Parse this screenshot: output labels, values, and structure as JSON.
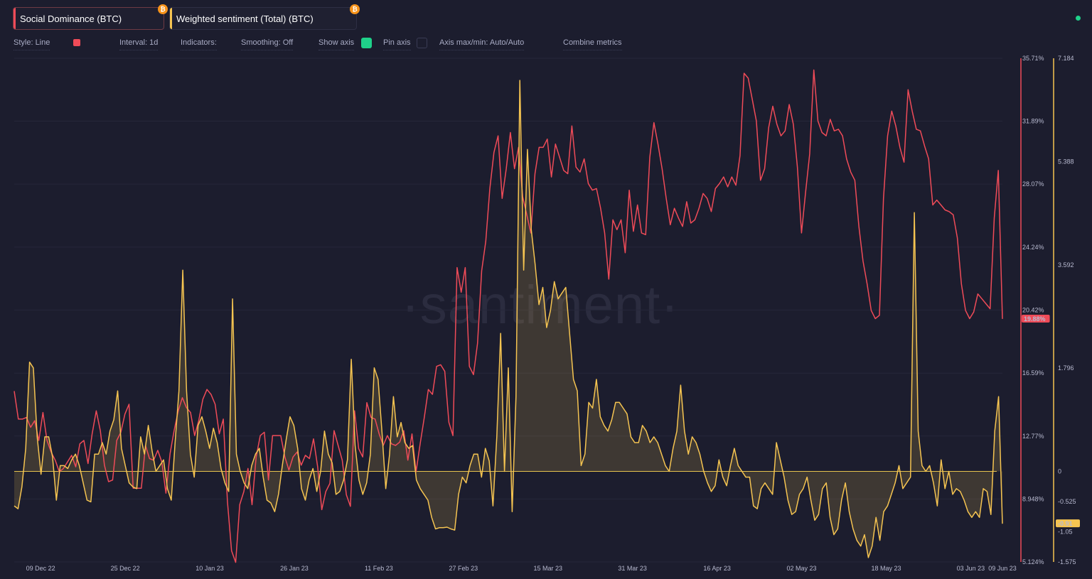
{
  "metrics": [
    {
      "label": "Social Dominance (BTC)",
      "color": "#ef4b58",
      "icon": "bitcoin-icon"
    },
    {
      "label": "Weighted sentiment (Total) (BTC)",
      "color": "#f5c451",
      "icon": "bitcoin-icon"
    }
  ],
  "toolbar": {
    "style": "Style: Line",
    "interval": "Interval: 1d",
    "indicators": "Indicators:",
    "smoothing": "Smoothing: Off",
    "show_axis": "Show axis",
    "pin_axis": "Pin axis",
    "axis_maxmin": "Axis max/min: Auto/Auto",
    "combine": "Combine metrics"
  },
  "watermark": "·santiment·",
  "colors": {
    "background": "#1c1d2e",
    "red": "#ef4b58",
    "yellow": "#f5c451",
    "green": "#1fd18a",
    "zero_line": "#e6c34e"
  },
  "chart_data": {
    "type": "line",
    "x_start": "2022-12-04",
    "x_end": "2023-06-09",
    "x_ticks": [
      "09 Dec 22",
      "25 Dec 22",
      "10 Jan 23",
      "26 Jan 23",
      "11 Feb 23",
      "27 Feb 23",
      "15 Mar 23",
      "31 Mar 23",
      "16 Apr 23",
      "02 May 23",
      "18 May 23",
      "03 Jun 23",
      "09 Jun 23"
    ],
    "axes": [
      {
        "id": "left",
        "metric": "Social Dominance (BTC)",
        "ylim": [
          5.124,
          35.71
        ],
        "ticks": [
          "35.71%",
          "31.89%",
          "28.07%",
          "24.24%",
          "20.42%",
          "16.59%",
          "12.77%",
          "8.948%",
          "5.124%"
        ],
        "last_value_label": "19.88%"
      },
      {
        "id": "right",
        "metric": "Weighted sentiment (Total) (BTC)",
        "ylim": [
          -1.575,
          7.184
        ],
        "ticks": [
          "7.184",
          "5.388",
          "3.592",
          "1.796",
          "0",
          "-0.525",
          "-1.05",
          "-1.575"
        ],
        "last_value_label": "-0.91"
      }
    ],
    "series": [
      {
        "name": "Social Dominance (BTC)",
        "axis": "left",
        "color": "#ef4b58",
        "style": "line",
        "values": [
          15.5,
          13.8,
          13.8,
          13.9,
          13.3,
          13.7,
          12.5,
          14.2,
          12.5,
          11.8,
          11.3,
          10.6,
          10.8,
          11.2,
          11.6,
          10.9,
          12.3,
          12.5,
          11.1,
          12.9,
          14.3,
          13.1,
          11.0,
          10.0,
          10.1,
          12.5,
          13.0,
          14.1,
          14.7,
          9.6,
          9.6,
          9.6,
          12.2,
          11.4,
          11.3,
          11.9,
          11.2,
          9.3,
          11.7,
          13.1,
          14.3,
          15.1,
          14.5,
          14.2,
          12.8,
          13.7,
          15.0,
          15.6,
          15.3,
          14.7,
          12.9,
          13.8,
          8.8,
          5.8,
          5.1,
          8.6,
          9.4,
          10.8,
          8.6,
          11.5,
          12.8,
          13.0,
          10.1,
          12.8,
          12.8,
          12.8,
          11.5,
          10.7,
          11.5,
          11.8,
          11.0,
          11.6,
          11.4,
          12.6,
          10.9,
          8.3,
          9.4,
          9.9,
          13.1,
          12.2,
          11.3,
          9.2,
          8.5,
          14.3,
          12.0,
          11.5,
          14.8,
          13.9,
          13.8,
          12.9,
          12.2,
          12.8,
          12.3,
          12.2,
          12.4,
          13.1,
          11.3,
          12.9,
          10.6,
          12.3,
          13.9,
          15.6,
          15.3,
          17.0,
          17.1,
          16.7,
          13.6,
          12.8,
          23.0,
          21.5,
          23.0,
          17.0,
          16.5,
          18.4,
          22.8,
          24.6,
          27.8,
          30.0,
          31.0,
          27.2,
          29.0,
          31.2,
          29.0,
          30.3,
          27.3,
          26.2,
          25.1,
          28.7,
          30.3,
          30.3,
          30.8,
          28.5,
          30.5,
          29.7,
          28.9,
          28.7,
          31.6,
          29.1,
          28.8,
          29.6,
          28.1,
          27.7,
          27.8,
          26.6,
          25.1,
          22.3,
          25.9,
          25.3,
          25.9,
          23.9,
          27.7,
          25.2,
          26.8,
          25.1,
          25.0,
          29.7,
          31.8,
          30.5,
          29.0,
          27.2,
          25.6,
          26.6,
          26.0,
          25.5,
          27.0,
          25.7,
          25.9,
          26.6,
          27.5,
          27.2,
          26.4,
          27.8,
          28.1,
          28.5,
          27.9,
          28.5,
          28.0,
          29.8,
          34.8,
          34.5,
          33.2,
          31.9,
          28.3,
          29.0,
          31.5,
          32.8,
          31.7,
          31.0,
          31.3,
          32.9,
          31.7,
          29.1,
          25.1,
          27.6,
          29.9,
          35.0,
          31.9,
          31.2,
          31.0,
          32.0,
          31.3,
          31.4,
          31.0,
          29.6,
          28.8,
          28.3,
          25.5,
          23.4,
          22.0,
          20.4,
          19.9,
          20.1,
          27.2,
          31.0,
          32.5,
          31.6,
          30.3,
          29.4,
          33.8,
          32.5,
          31.4,
          31.3,
          30.4,
          29.6,
          26.8,
          27.1,
          26.8,
          26.5,
          26.4,
          26.2,
          24.8,
          22.0,
          20.4,
          19.9,
          20.3,
          21.4,
          21.1,
          20.8,
          20.5,
          26.0,
          28.9,
          19.88
        ]
      },
      {
        "name": "Weighted sentiment (Total) (BTC)",
        "axis": "right",
        "color": "#f5c451",
        "style": "area",
        "values": [
          -0.6,
          -0.65,
          -0.27,
          0.4,
          1.9,
          1.8,
          0.6,
          -0.05,
          0.6,
          0.6,
          0.25,
          -0.5,
          0.1,
          0.1,
          0.05,
          0.2,
          0.3,
          0.1,
          -0.2,
          -0.5,
          -0.53,
          0.3,
          0.3,
          0.5,
          0.3,
          0.7,
          0.9,
          1.4,
          0.4,
          0.1,
          -0.2,
          -0.27,
          -0.3,
          0.6,
          0.3,
          0.8,
          0.35,
          0.0,
          0.1,
          0.2,
          -0.3,
          -0.5,
          0.5,
          1.4,
          3.5,
          1.4,
          0.3,
          -0.1,
          0.8,
          0.95,
          0.7,
          0.4,
          0.75,
          0.5,
          0.05,
          -0.2,
          -0.35,
          3.0,
          0.3,
          0.0,
          -0.2,
          -0.3,
          0.1,
          0.3,
          0.4,
          -0.1,
          -0.5,
          -0.55,
          -0.7,
          -0.4,
          0.1,
          0.55,
          0.95,
          0.8,
          0.4,
          -0.3,
          -0.5,
          -0.15,
          0.05,
          -0.35,
          0.0,
          0.7,
          0.3,
          0.15,
          -0.4,
          -0.35,
          -0.15,
          0.2,
          1.95,
          0.45,
          -0.15,
          -0.4,
          -0.2,
          0.3,
          1.8,
          1.6,
          0.7,
          -0.3,
          0.3,
          1.3,
          0.6,
          0.85,
          0.5,
          0.4,
          0.45,
          -0.15,
          -0.3,
          -0.4,
          -0.5,
          -0.8,
          -1.0,
          -0.98,
          -0.98,
          -0.97,
          -1.0,
          -1.02,
          -0.4,
          -0.1,
          -0.2,
          0.1,
          0.3,
          0.3,
          -0.1,
          0.4,
          0.18,
          -0.6,
          0.6,
          2.4,
          0.0,
          1.8,
          -0.7,
          1.3,
          6.8,
          3.5,
          5.6,
          4.2,
          3.6,
          2.9,
          3.2,
          2.5,
          2.8,
          3.3,
          3.0,
          3.1,
          3.2,
          2.4,
          1.6,
          1.4,
          0.1,
          0.3,
          1.2,
          1.1,
          1.6,
          0.95,
          0.8,
          0.7,
          0.9,
          1.2,
          1.2,
          1.1,
          1.0,
          0.6,
          0.5,
          0.5,
          0.8,
          0.7,
          0.5,
          0.6,
          0.5,
          0.3,
          0.1,
          0.0,
          0.4,
          0.7,
          1.5,
          0.7,
          0.3,
          0.6,
          0.5,
          0.3,
          0.0,
          -0.2,
          -0.35,
          -0.25,
          0.2,
          -0.1,
          -0.25,
          0.1,
          0.4,
          0.1,
          0.0,
          -0.1,
          -0.1,
          -0.6,
          -0.65,
          -0.3,
          -0.2,
          -0.3,
          -0.4,
          0.5,
          0.2,
          -0.1,
          -0.5,
          -0.75,
          -0.7,
          -0.4,
          -0.3,
          -0.1,
          -0.5,
          -0.85,
          -0.75,
          -0.3,
          -0.2,
          -0.8,
          -1.1,
          -1.0,
          -0.5,
          -0.2,
          -0.7,
          -1.0,
          -1.2,
          -1.3,
          -1.1,
          -1.5,
          -1.3,
          -0.8,
          -1.2,
          -0.7,
          -0.6,
          -0.4,
          -0.2,
          0.1,
          -0.3,
          -0.2,
          -0.1,
          4.5,
          0.7,
          0.1,
          0.0,
          0.1,
          -0.2,
          -0.6,
          0.2,
          -0.3,
          0.0,
          -0.4,
          -0.3,
          -0.35,
          -0.5,
          -0.7,
          -0.8,
          -0.7,
          -0.8,
          -0.3,
          -0.35,
          -0.75,
          0.7,
          1.3,
          -0.91
        ]
      }
    ]
  }
}
